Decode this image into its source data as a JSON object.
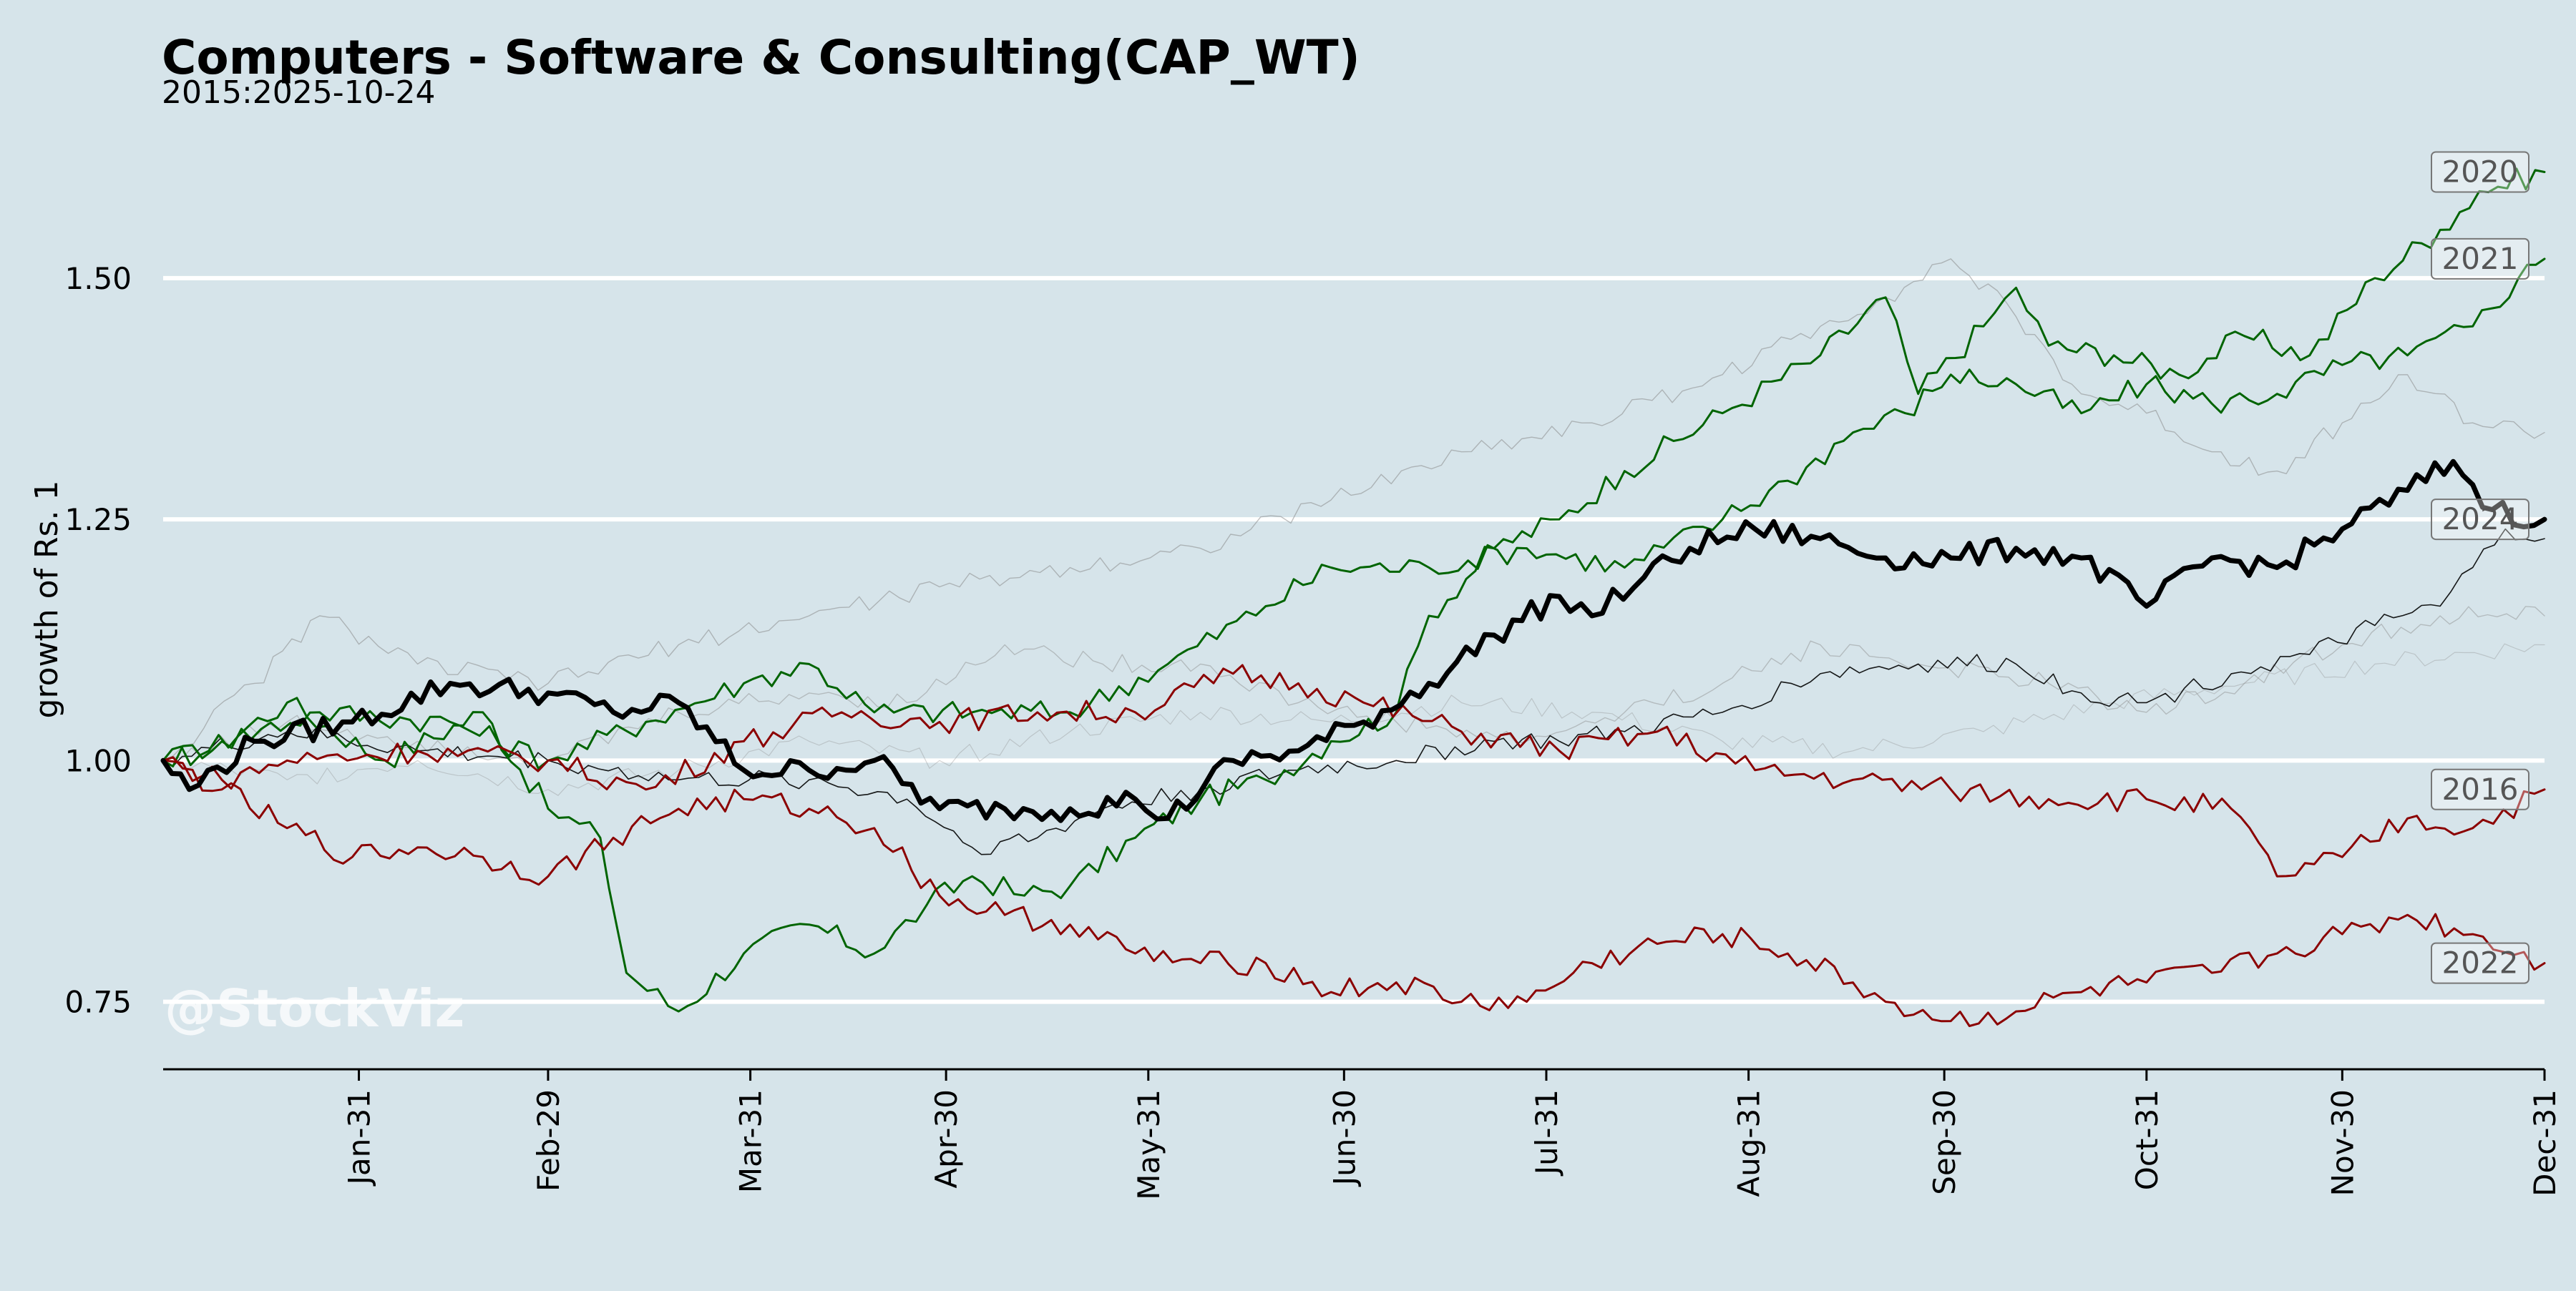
{
  "chart_data": {
    "type": "line",
    "title": "Computers - Software & Consulting(CAP_WT)",
    "subtitle": "2015:2025-10-24",
    "ylabel": "growth of Rs. 1",
    "xlabel": "",
    "watermark": "@StockViz",
    "ylim": [
      0.68,
      1.64
    ],
    "yticks": [
      0.75,
      1.0,
      1.25,
      1.5
    ],
    "ytick_labels": [
      "0.75",
      "1.00",
      "1.25",
      "1.50"
    ],
    "xlim": [
      1,
      366
    ],
    "xticks": [
      31,
      60,
      91,
      121,
      152,
      182,
      213,
      244,
      274,
      305,
      335,
      366
    ],
    "xtick_labels": [
      "Jan-31",
      "Feb-29",
      "Mar-31",
      "Apr-30",
      "May-31",
      "Jun-30",
      "Jul-31",
      "Aug-31",
      "Sep-30",
      "Oct-31",
      "Nov-30",
      "Dec-31"
    ],
    "grid": "horizontal",
    "series_colors": {
      "up_strong": "#006400",
      "down_strong": "#8b0000",
      "current": "#000000",
      "faint": "#8a8a8a"
    },
    "series": [
      {
        "name": "2020",
        "color": "#006400",
        "width": 3,
        "opacity": 1,
        "label": "2020",
        "points": [
          [
            1,
            1.0
          ],
          [
            8,
            1.01
          ],
          [
            20,
            1.06
          ],
          [
            35,
            1.0
          ],
          [
            50,
            1.05
          ],
          [
            60,
            0.95
          ],
          [
            68,
            0.92
          ],
          [
            72,
            0.78
          ],
          [
            80,
            0.74
          ],
          [
            90,
            0.8
          ],
          [
            100,
            0.83
          ],
          [
            110,
            0.8
          ],
          [
            118,
            0.85
          ],
          [
            125,
            0.88
          ],
          [
            133,
            0.86
          ],
          [
            140,
            0.87
          ],
          [
            150,
            0.92
          ],
          [
            160,
            0.96
          ],
          [
            170,
            0.98
          ],
          [
            180,
            1.02
          ],
          [
            190,
            1.05
          ],
          [
            195,
            1.15
          ],
          [
            205,
            1.22
          ],
          [
            215,
            1.25
          ],
          [
            225,
            1.3
          ],
          [
            240,
            1.36
          ],
          [
            255,
            1.42
          ],
          [
            265,
            1.48
          ],
          [
            270,
            1.38
          ],
          [
            280,
            1.45
          ],
          [
            285,
            1.49
          ],
          [
            290,
            1.43
          ],
          [
            300,
            1.42
          ],
          [
            310,
            1.4
          ],
          [
            320,
            1.44
          ],
          [
            330,
            1.42
          ],
          [
            340,
            1.5
          ],
          [
            350,
            1.55
          ],
          [
            356,
            1.59
          ],
          [
            366,
            1.61
          ]
        ]
      },
      {
        "name": "2021",
        "color": "#006400",
        "width": 3,
        "opacity": 1,
        "label": "2021",
        "points": [
          [
            1,
            1.0
          ],
          [
            10,
            1.02
          ],
          [
            25,
            1.05
          ],
          [
            45,
            1.04
          ],
          [
            60,
            1.0
          ],
          [
            75,
            1.04
          ],
          [
            90,
            1.08
          ],
          [
            100,
            1.1
          ],
          [
            110,
            1.05
          ],
          [
            125,
            1.05
          ],
          [
            140,
            1.05
          ],
          [
            155,
            1.1
          ],
          [
            170,
            1.16
          ],
          [
            180,
            1.2
          ],
          [
            195,
            1.2
          ],
          [
            210,
            1.22
          ],
          [
            225,
            1.2
          ],
          [
            240,
            1.25
          ],
          [
            250,
            1.29
          ],
          [
            260,
            1.34
          ],
          [
            268,
            1.36
          ],
          [
            275,
            1.4
          ],
          [
            285,
            1.39
          ],
          [
            295,
            1.36
          ],
          [
            305,
            1.39
          ],
          [
            315,
            1.37
          ],
          [
            325,
            1.38
          ],
          [
            335,
            1.41
          ],
          [
            345,
            1.42
          ],
          [
            355,
            1.45
          ],
          [
            362,
            1.5
          ],
          [
            366,
            1.52
          ]
        ]
      },
      {
        "name": "2024",
        "color": "#000000",
        "width": 7,
        "opacity": 1,
        "label": "2024",
        "points": [
          [
            1,
            1.0
          ],
          [
            5,
            0.97
          ],
          [
            15,
            1.02
          ],
          [
            30,
            1.04
          ],
          [
            45,
            1.08
          ],
          [
            60,
            1.07
          ],
          [
            70,
            1.05
          ],
          [
            80,
            1.06
          ],
          [
            90,
            0.99
          ],
          [
            100,
            0.99
          ],
          [
            110,
            1.0
          ],
          [
            120,
            0.95
          ],
          [
            130,
            0.95
          ],
          [
            140,
            0.95
          ],
          [
            150,
            0.96
          ],
          [
            155,
            0.94
          ],
          [
            165,
            1.0
          ],
          [
            175,
            1.01
          ],
          [
            185,
            1.04
          ],
          [
            195,
            1.08
          ],
          [
            205,
            1.13
          ],
          [
            215,
            1.17
          ],
          [
            220,
            1.15
          ],
          [
            228,
            1.19
          ],
          [
            235,
            1.22
          ],
          [
            245,
            1.24
          ],
          [
            255,
            1.23
          ],
          [
            265,
            1.21
          ],
          [
            275,
            1.21
          ],
          [
            285,
            1.22
          ],
          [
            295,
            1.21
          ],
          [
            305,
            1.16
          ],
          [
            315,
            1.21
          ],
          [
            325,
            1.2
          ],
          [
            335,
            1.24
          ],
          [
            345,
            1.28
          ],
          [
            352,
            1.31
          ],
          [
            358,
            1.26
          ],
          [
            366,
            1.25
          ]
        ]
      },
      {
        "name": "2016",
        "color": "#8b0000",
        "width": 3,
        "opacity": 1,
        "label": "2016",
        "points": [
          [
            1,
            1.0
          ],
          [
            10,
            0.98
          ],
          [
            20,
            1.0
          ],
          [
            40,
            1.01
          ],
          [
            60,
            1.0
          ],
          [
            75,
            0.97
          ],
          [
            90,
            1.02
          ],
          [
            105,
            1.05
          ],
          [
            120,
            1.04
          ],
          [
            135,
            1.05
          ],
          [
            150,
            1.05
          ],
          [
            165,
            1.09
          ],
          [
            175,
            1.08
          ],
          [
            185,
            1.06
          ],
          [
            200,
            1.03
          ],
          [
            215,
            1.01
          ],
          [
            230,
            1.03
          ],
          [
            245,
            0.99
          ],
          [
            260,
            0.98
          ],
          [
            275,
            0.97
          ],
          [
            290,
            0.96
          ],
          [
            305,
            0.96
          ],
          [
            318,
            0.95
          ],
          [
            325,
            0.88
          ],
          [
            335,
            0.9
          ],
          [
            345,
            0.94
          ],
          [
            355,
            0.93
          ],
          [
            366,
            0.97
          ]
        ]
      },
      {
        "name": "2022",
        "color": "#8b0000",
        "width": 3,
        "opacity": 1,
        "label": "2022",
        "points": [
          [
            1,
            1.0
          ],
          [
            10,
            0.97
          ],
          [
            20,
            0.93
          ],
          [
            30,
            0.9
          ],
          [
            40,
            0.91
          ],
          [
            50,
            0.9
          ],
          [
            60,
            0.88
          ],
          [
            70,
            0.92
          ],
          [
            80,
            0.95
          ],
          [
            90,
            0.96
          ],
          [
            100,
            0.95
          ],
          [
            110,
            0.93
          ],
          [
            120,
            0.86
          ],
          [
            130,
            0.84
          ],
          [
            140,
            0.83
          ],
          [
            150,
            0.8
          ],
          [
            160,
            0.79
          ],
          [
            170,
            0.79
          ],
          [
            180,
            0.76
          ],
          [
            190,
            0.77
          ],
          [
            200,
            0.75
          ],
          [
            210,
            0.75
          ],
          [
            220,
            0.79
          ],
          [
            230,
            0.81
          ],
          [
            240,
            0.82
          ],
          [
            250,
            0.8
          ],
          [
            260,
            0.77
          ],
          [
            265,
            0.75
          ],
          [
            275,
            0.73
          ],
          [
            285,
            0.74
          ],
          [
            295,
            0.76
          ],
          [
            305,
            0.77
          ],
          [
            315,
            0.78
          ],
          [
            325,
            0.8
          ],
          [
            335,
            0.82
          ],
          [
            345,
            0.84
          ],
          [
            355,
            0.82
          ],
          [
            366,
            0.79
          ]
        ]
      },
      {
        "name": "",
        "color": "#000000",
        "width": 1.6,
        "opacity": 0.9,
        "label": "",
        "points": [
          [
            1,
            1.0
          ],
          [
            20,
            1.03
          ],
          [
            40,
            1.01
          ],
          [
            60,
            1.0
          ],
          [
            80,
            0.98
          ],
          [
            100,
            0.98
          ],
          [
            115,
            0.96
          ],
          [
            125,
            0.91
          ],
          [
            135,
            0.92
          ],
          [
            145,
            0.95
          ],
          [
            160,
            0.97
          ],
          [
            175,
            0.99
          ],
          [
            190,
            1.0
          ],
          [
            205,
            1.02
          ],
          [
            215,
            1.02
          ],
          [
            225,
            1.03
          ],
          [
            240,
            1.05
          ],
          [
            255,
            1.09
          ],
          [
            270,
            1.1
          ],
          [
            285,
            1.1
          ],
          [
            295,
            1.07
          ],
          [
            305,
            1.06
          ],
          [
            318,
            1.09
          ],
          [
            330,
            1.11
          ],
          [
            340,
            1.14
          ],
          [
            350,
            1.16
          ],
          [
            355,
            1.2
          ],
          [
            360,
            1.24
          ],
          [
            366,
            1.23
          ]
        ]
      },
      {
        "name": "",
        "color": "#8a8a8a",
        "width": 1.4,
        "opacity": 0.55,
        "label": "",
        "points": [
          [
            1,
            1.0
          ],
          [
            15,
            1.08
          ],
          [
            25,
            1.15
          ],
          [
            40,
            1.1
          ],
          [
            60,
            1.08
          ],
          [
            80,
            1.12
          ],
          [
            100,
            1.15
          ],
          [
            120,
            1.18
          ],
          [
            140,
            1.2
          ],
          [
            160,
            1.22
          ],
          [
            180,
            1.27
          ],
          [
            200,
            1.32
          ],
          [
            220,
            1.35
          ],
          [
            240,
            1.4
          ],
          [
            255,
            1.45
          ],
          [
            265,
            1.48
          ],
          [
            275,
            1.52
          ],
          [
            285,
            1.46
          ],
          [
            295,
            1.38
          ],
          [
            305,
            1.36
          ],
          [
            315,
            1.32
          ],
          [
            325,
            1.3
          ],
          [
            335,
            1.35
          ],
          [
            345,
            1.4
          ],
          [
            355,
            1.35
          ],
          [
            366,
            1.34
          ]
        ]
      },
      {
        "name": "",
        "color": "#8a8a8a",
        "width": 1.4,
        "opacity": 0.45,
        "label": "",
        "points": [
          [
            1,
            1.0
          ],
          [
            20,
            1.04
          ],
          [
            40,
            1.02
          ],
          [
            60,
            1.0
          ],
          [
            80,
            1.05
          ],
          [
            100,
            1.07
          ],
          [
            115,
            1.06
          ],
          [
            130,
            1.12
          ],
          [
            145,
            1.1
          ],
          [
            160,
            1.1
          ],
          [
            175,
            1.06
          ],
          [
            190,
            1.04
          ],
          [
            210,
            1.02
          ],
          [
            225,
            1.05
          ],
          [
            240,
            1.08
          ],
          [
            255,
            1.12
          ],
          [
            270,
            1.1
          ],
          [
            290,
            1.08
          ],
          [
            305,
            1.05
          ],
          [
            320,
            1.08
          ],
          [
            335,
            1.12
          ],
          [
            350,
            1.15
          ],
          [
            366,
            1.15
          ]
        ]
      },
      {
        "name": "",
        "color": "#8a8a8a",
        "width": 1.2,
        "opacity": 0.35,
        "label": "",
        "points": [
          [
            1,
            1.0
          ],
          [
            20,
            0.98
          ],
          [
            40,
            1.0
          ],
          [
            60,
            0.97
          ],
          [
            80,
            0.99
          ],
          [
            100,
            1.02
          ],
          [
            120,
            1.0
          ],
          [
            140,
            1.03
          ],
          [
            160,
            1.05
          ],
          [
            180,
            1.04
          ],
          [
            200,
            1.06
          ],
          [
            220,
            1.05
          ],
          [
            240,
            1.02
          ],
          [
            260,
            1.01
          ],
          [
            280,
            1.03
          ],
          [
            300,
            1.06
          ],
          [
            320,
            1.08
          ],
          [
            340,
            1.1
          ],
          [
            366,
            1.12
          ]
        ]
      }
    ]
  }
}
